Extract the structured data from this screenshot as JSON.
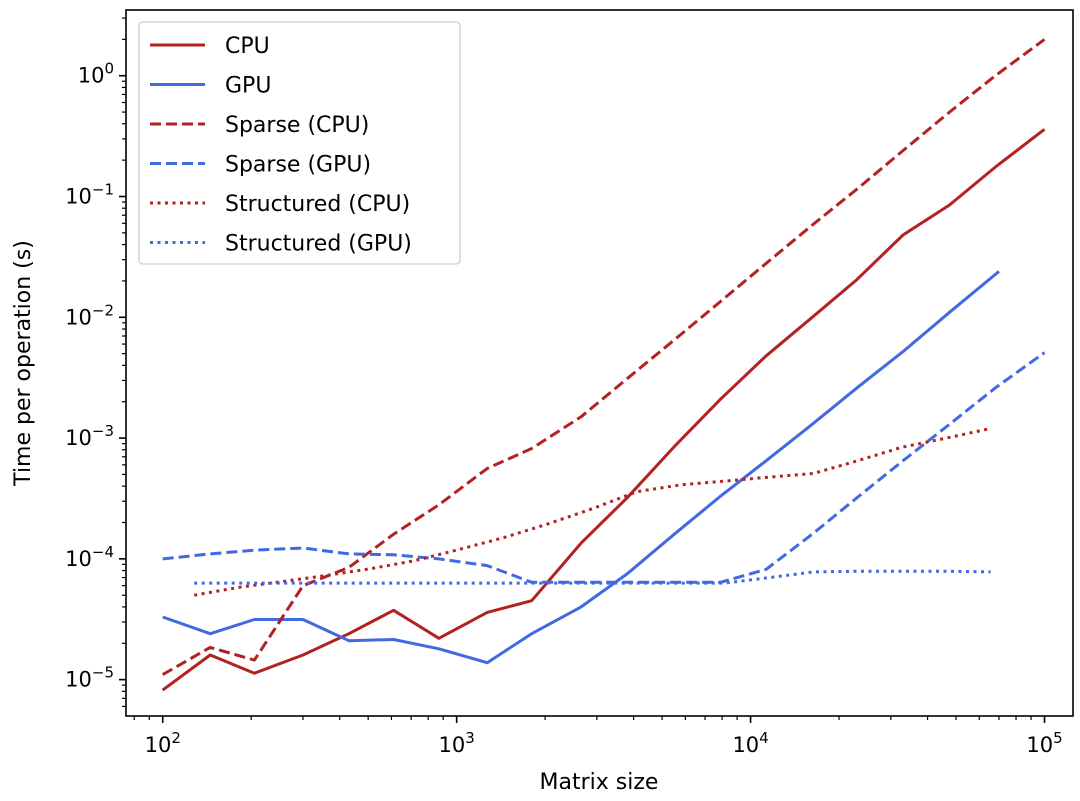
{
  "chart_data": {
    "type": "line",
    "title": "",
    "xlabel": "Matrix size",
    "ylabel": "Time per operation (s)",
    "xscale": "log",
    "yscale": "log",
    "xlim": [
      75,
      125000
    ],
    "ylim": [
      5e-06,
      3.5
    ],
    "legend_position": "top-left",
    "x_ticks": [
      {
        "value": 100,
        "base": "10",
        "exp": "2"
      },
      {
        "value": 1000,
        "base": "10",
        "exp": "3"
      },
      {
        "value": 10000,
        "base": "10",
        "exp": "4"
      },
      {
        "value": 100000,
        "base": "10",
        "exp": "5"
      }
    ],
    "y_ticks": [
      {
        "value": 1e-05,
        "base": "10",
        "exp": "−5"
      },
      {
        "value": 0.0001,
        "base": "10",
        "exp": "−4"
      },
      {
        "value": 0.001,
        "base": "10",
        "exp": "−3"
      },
      {
        "value": 0.01,
        "base": "10",
        "exp": "−2"
      },
      {
        "value": 0.1,
        "base": "10",
        "exp": "−1"
      },
      {
        "value": 1,
        "base": "10",
        "exp": "0"
      }
    ],
    "series": [
      {
        "name": "CPU",
        "color": "#b22222",
        "style": "solid",
        "x": [
          100,
          145,
          205,
          300,
          430,
          610,
          870,
          1270,
          1800,
          2650,
          3800,
          5500,
          7900,
          11300,
          16200,
          23000,
          33000,
          47500,
          68000,
          100000
        ],
        "y": [
          8.2e-06,
          1.6e-05,
          1.13e-05,
          1.6e-05,
          2.4e-05,
          3.75e-05,
          2.2e-05,
          3.6e-05,
          4.5e-05,
          0.000135,
          0.00032,
          0.00085,
          0.0021,
          0.0048,
          0.01,
          0.0205,
          0.048,
          0.085,
          0.175,
          0.36
        ]
      },
      {
        "name": "GPU",
        "color": "#4169e1",
        "style": "solid",
        "x": [
          100,
          145,
          205,
          300,
          430,
          610,
          870,
          1270,
          1800,
          2650,
          3800,
          5500,
          7900,
          11300,
          16200,
          23000,
          33000,
          47500,
          70000
        ],
        "y": [
          3.3e-05,
          2.4e-05,
          3.15e-05,
          3.15e-05,
          2.1e-05,
          2.15e-05,
          1.8e-05,
          1.38e-05,
          2.4e-05,
          4e-05,
          7.5e-05,
          0.00016,
          0.00033,
          0.00065,
          0.0013,
          0.0026,
          0.0052,
          0.011,
          0.024
        ]
      },
      {
        "name": "Sparse (CPU)",
        "color": "#b22222",
        "style": "dashed",
        "x": [
          100,
          145,
          205,
          300,
          430,
          610,
          870,
          1270,
          1800,
          2650,
          3800,
          5500,
          7900,
          11300,
          16200,
          23000,
          33000,
          47500,
          68000,
          100000
        ],
        "y": [
          1.1e-05,
          1.85e-05,
          1.45e-05,
          6e-05,
          8.5e-05,
          0.00016,
          0.00028,
          0.00056,
          0.00082,
          0.0015,
          0.0031,
          0.0065,
          0.0135,
          0.028,
          0.058,
          0.115,
          0.24,
          0.5,
          1.0,
          2.0
        ]
      },
      {
        "name": "Sparse (GPU)",
        "color": "#4169e1",
        "style": "dashed",
        "x": [
          100,
          145,
          205,
          300,
          430,
          610,
          870,
          1270,
          1800,
          2650,
          3800,
          5500,
          7900,
          11300,
          16200,
          23000,
          33000,
          47500,
          68000,
          100000
        ],
        "y": [
          0.0001,
          0.00011,
          0.000118,
          0.000123,
          0.00011,
          0.000108,
          0.0001,
          8.8e-05,
          6.4e-05,
          6.4e-05,
          6.4e-05,
          6.4e-05,
          6.4e-05,
          8.2e-05,
          0.00016,
          0.00032,
          0.00065,
          0.0013,
          0.0026,
          0.0051
        ]
      },
      {
        "name": "Structured (CPU)",
        "color": "#b22222",
        "style": "dotted",
        "x": [
          128,
          181,
          256,
          362,
          512,
          724,
          1024,
          1448,
          2048,
          2896,
          4096,
          5793,
          8192,
          11585,
          16384,
          23170,
          32768,
          46341,
          65536
        ],
        "y": [
          5e-05,
          5.8e-05,
          6.5e-05,
          7.3e-05,
          8.3e-05,
          9.7e-05,
          0.00012,
          0.00015,
          0.000195,
          0.00026,
          0.00036,
          0.00041,
          0.00044,
          0.000475,
          0.00051,
          0.00065,
          0.00084,
          0.001,
          0.0012
        ]
      },
      {
        "name": "Structured (GPU)",
        "color": "#4169e1",
        "style": "dotted",
        "x": [
          128,
          181,
          256,
          362,
          512,
          724,
          1024,
          1448,
          2048,
          2896,
          4096,
          5793,
          8192,
          11585,
          16384,
          23170,
          32768,
          46341,
          65536
        ],
        "y": [
          6.3e-05,
          6.3e-05,
          6.3e-05,
          6.3e-05,
          6.3e-05,
          6.3e-05,
          6.3e-05,
          6.3e-05,
          6.3e-05,
          6.3e-05,
          6.3e-05,
          6.3e-05,
          6.3e-05,
          7e-05,
          7.8e-05,
          7.9e-05,
          7.9e-05,
          7.9e-05,
          7.8e-05
        ]
      }
    ]
  }
}
